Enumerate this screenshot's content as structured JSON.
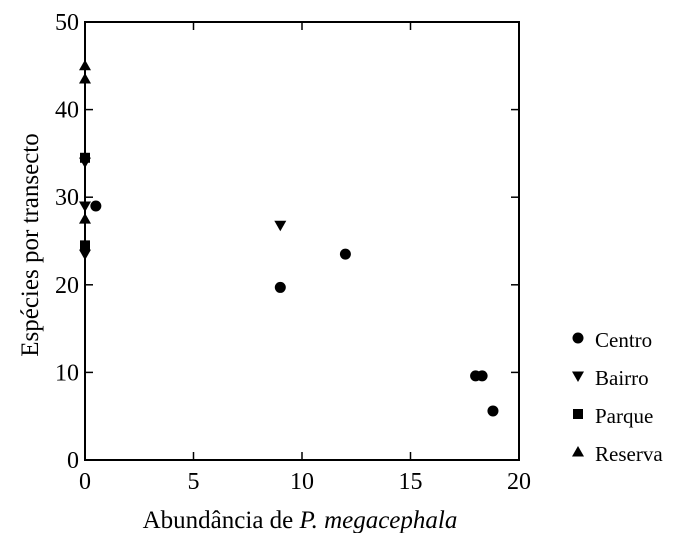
{
  "chart_data": {
    "type": "scatter",
    "title": "",
    "xlabel_prefix": "Abundância de ",
    "xlabel_italic": "P. megacephala",
    "ylabel": "Espécies por transecto",
    "xlim": [
      0,
      20
    ],
    "ylim": [
      0,
      50
    ],
    "xticks": [
      0,
      5,
      10,
      15,
      20
    ],
    "yticks": [
      0,
      10,
      20,
      30,
      40,
      50
    ],
    "grid": false,
    "legend_position": "right",
    "series": [
      {
        "name": "Centro",
        "marker": "circle",
        "points": [
          [
            0.5,
            29
          ],
          [
            9,
            19.7
          ],
          [
            12,
            23.5
          ],
          [
            18,
            9.6
          ],
          [
            18.3,
            9.6
          ],
          [
            18.8,
            5.6
          ]
        ]
      },
      {
        "name": "Bairro",
        "marker": "triangle-down",
        "points": [
          [
            0,
            23.5
          ],
          [
            0,
            29
          ],
          [
            0,
            34
          ],
          [
            9,
            26.8
          ]
        ]
      },
      {
        "name": "Parque",
        "marker": "square",
        "points": [
          [
            0,
            24.5
          ],
          [
            0,
            34.5
          ]
        ]
      },
      {
        "name": "Reserva",
        "marker": "triangle-up",
        "points": [
          [
            0,
            27.5
          ],
          [
            0,
            43.5
          ],
          [
            0,
            45
          ]
        ]
      }
    ]
  }
}
